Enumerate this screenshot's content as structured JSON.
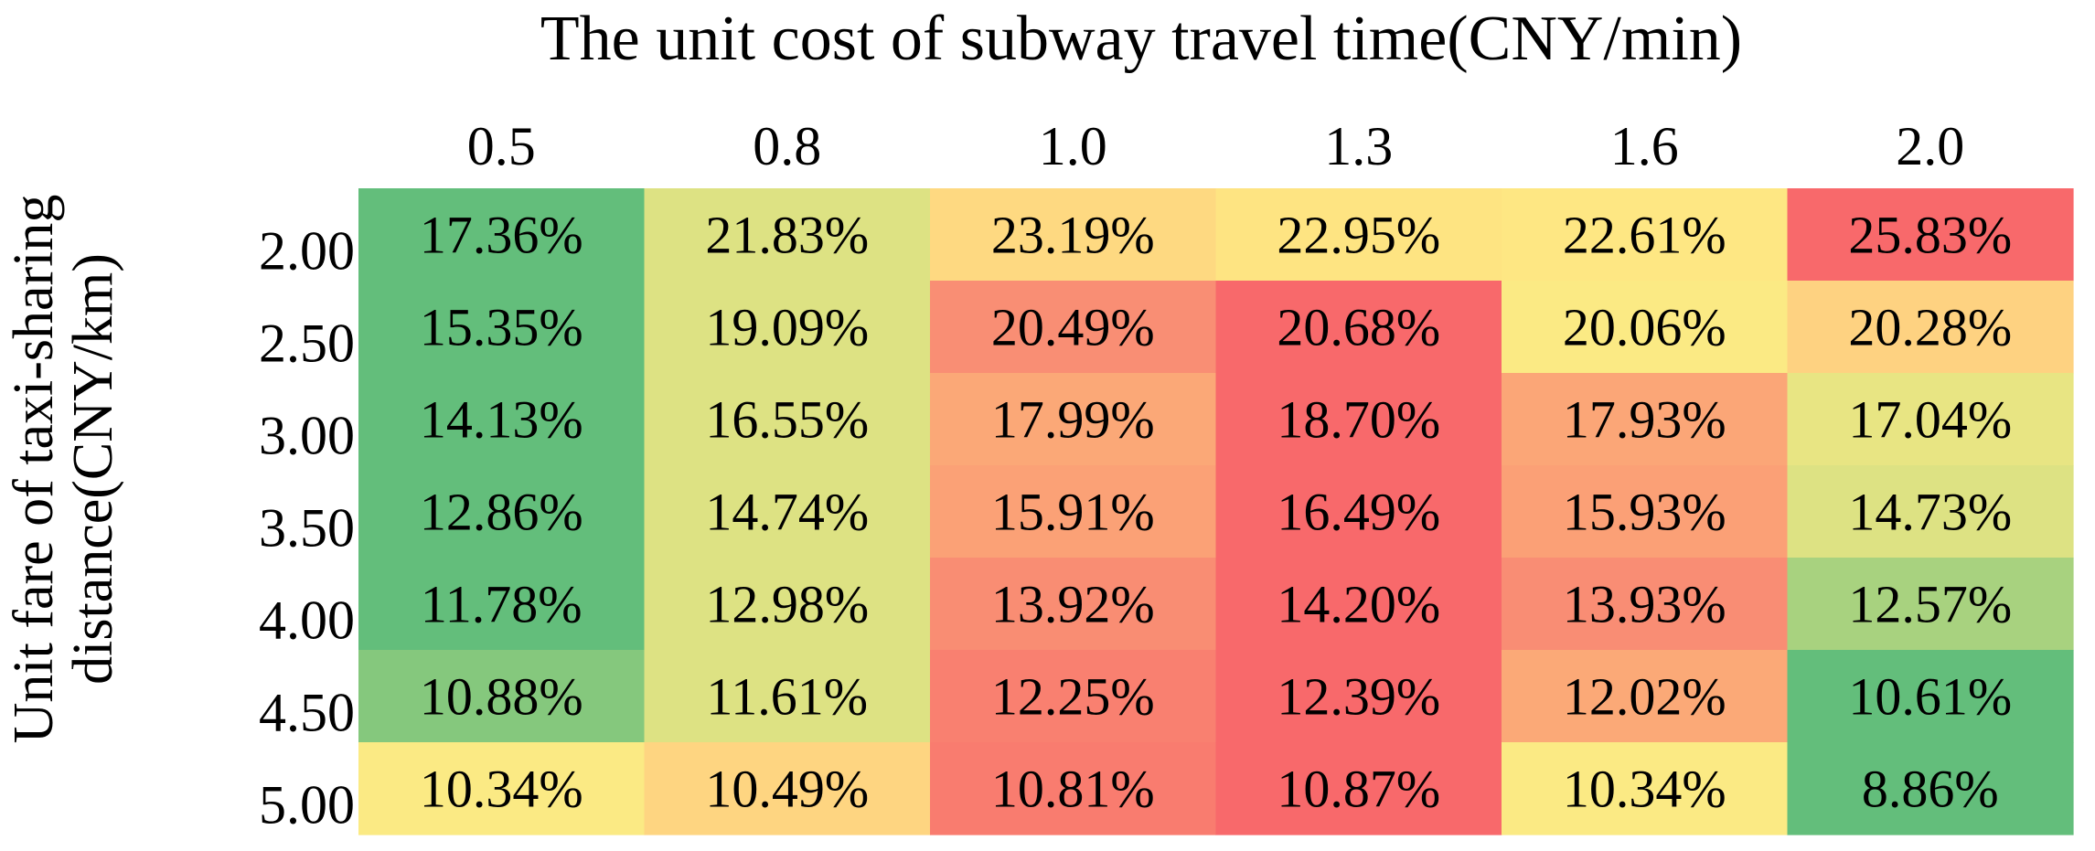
{
  "chart_data": {
    "type": "heatmap",
    "title": "",
    "xlabel": "The unit cost of  subway travel time(CNY/min)",
    "ylabel_lines": [
      "Unit fare of taxi-sharing",
      "distance(CNY/km)"
    ],
    "x_categories": [
      "0.5",
      "0.8",
      "1.0",
      "1.3",
      "1.6",
      "2.0"
    ],
    "y_categories": [
      "2.00",
      "2.50",
      "3.00",
      "3.50",
      "4.00",
      "4.50",
      "5.00"
    ],
    "values": [
      [
        17.36,
        21.83,
        23.19,
        22.95,
        22.61,
        25.83
      ],
      [
        15.35,
        19.09,
        20.49,
        20.68,
        20.06,
        20.28
      ],
      [
        14.13,
        16.55,
        17.99,
        18.7,
        17.93,
        17.04
      ],
      [
        12.86,
        14.74,
        15.91,
        16.49,
        15.93,
        14.73
      ],
      [
        11.78,
        12.98,
        13.92,
        14.2,
        13.93,
        12.57
      ],
      [
        10.88,
        11.61,
        12.25,
        12.39,
        12.02,
        10.61
      ],
      [
        10.34,
        10.49,
        10.81,
        10.87,
        10.34,
        8.86
      ]
    ],
    "labels": [
      [
        "17.36%",
        "21.83%",
        "23.19%",
        "22.95%",
        "22.61%",
        "25.83%"
      ],
      [
        "15.35%",
        "19.09%",
        "20.49%",
        "20.68%",
        "20.06%",
        "20.28%"
      ],
      [
        "14.13%",
        "16.55%",
        "17.99%",
        "18.70%",
        "17.93%",
        "17.04%"
      ],
      [
        "12.86%",
        "14.74%",
        "15.91%",
        "16.49%",
        "15.93%",
        "14.73%"
      ],
      [
        "11.78%",
        "12.98%",
        "13.92%",
        "14.20%",
        "13.93%",
        "12.57%"
      ],
      [
        "10.88%",
        "11.61%",
        "12.25%",
        "12.39%",
        "12.02%",
        "10.61%"
      ],
      [
        "10.34%",
        "10.49%",
        "10.81%",
        "10.87%",
        "10.34%",
        "8.86%"
      ]
    ],
    "colors": [
      [
        "#63be7b",
        "#dde283",
        "#fed981",
        "#fee482",
        "#fee783",
        "#f8696b"
      ],
      [
        "#63be7b",
        "#dde283",
        "#f98e74",
        "#f8696b",
        "#fbea84",
        "#fed281"
      ],
      [
        "#63be7b",
        "#dde283",
        "#fba877",
        "#f8696b",
        "#fba677",
        "#e8e583"
      ],
      [
        "#63be7b",
        "#dde283",
        "#fba176",
        "#f8696b",
        "#fba076",
        "#dde283"
      ],
      [
        "#63be7b",
        "#dde283",
        "#f98d73",
        "#f8696b",
        "#f98d74",
        "#a8d27f"
      ],
      [
        "#85c87d",
        "#dde283",
        "#f98070",
        "#f8696b",
        "#fba977",
        "#63be7b"
      ],
      [
        "#fbea84",
        "#fed581",
        "#f97c6f",
        "#f8696b",
        "#fbea84",
        "#63be7b"
      ]
    ],
    "color_scale": {
      "low": "#63be7b",
      "mid": "#ffeb84",
      "high": "#f8696b",
      "scope": "per-column"
    },
    "grid": false,
    "legend": "none"
  }
}
